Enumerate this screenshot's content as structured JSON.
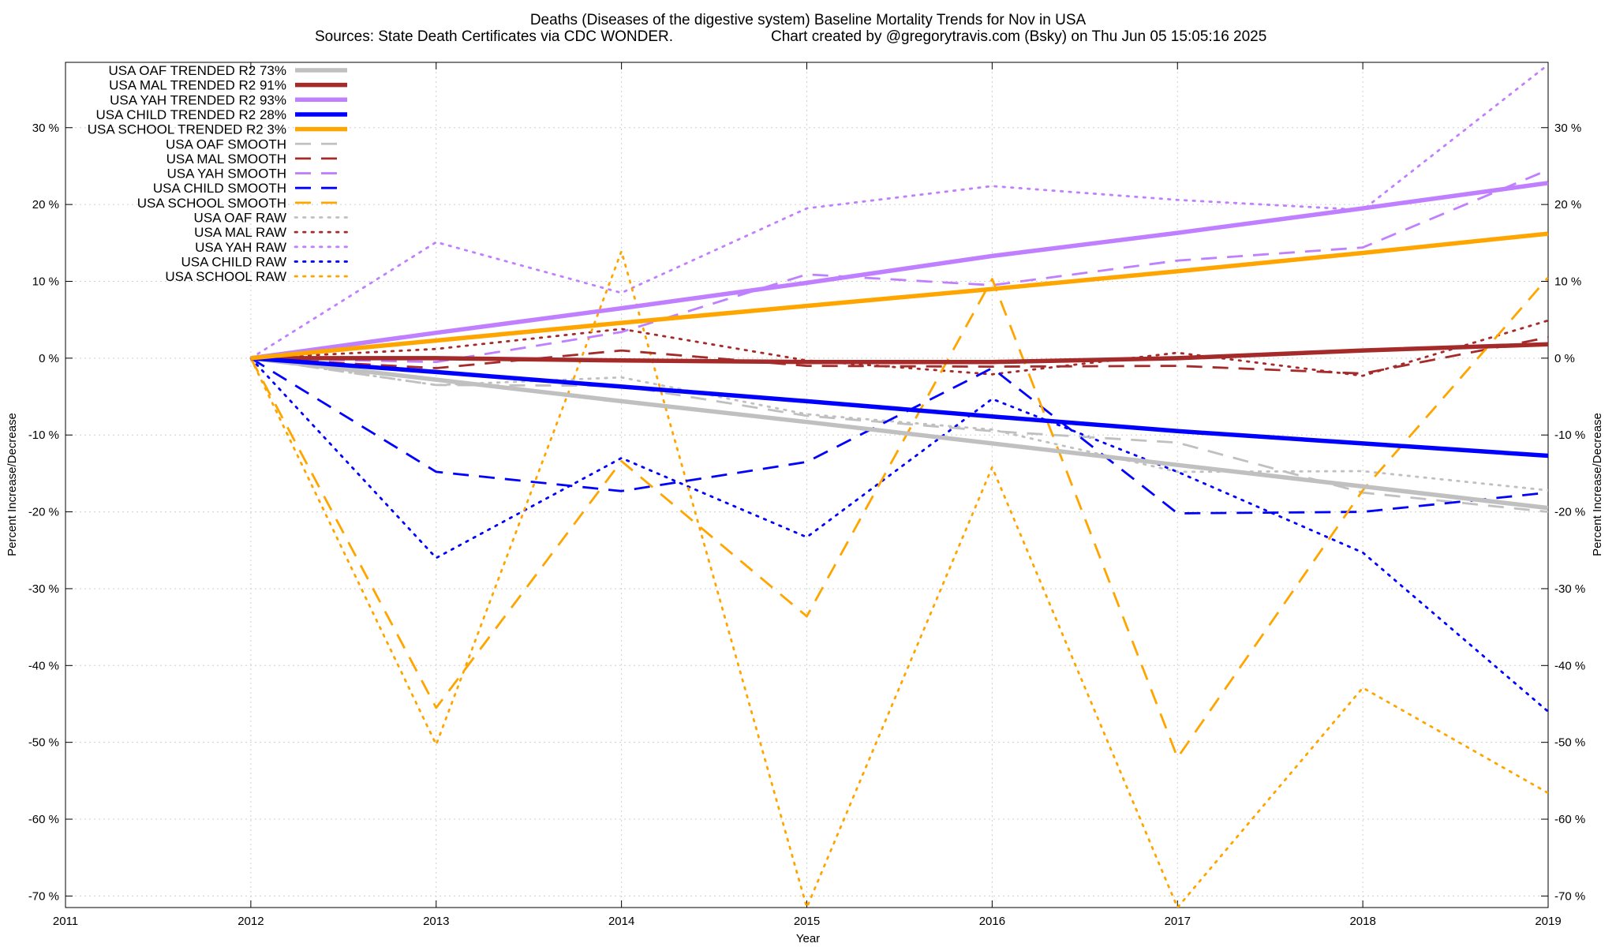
{
  "chart_data": {
    "type": "line",
    "title": "Deaths (Diseases of the digestive system)  Baseline Mortality Trends for Nov in USA",
    "subtitle_left": "Sources: State Death Certificates via CDC WONDER.",
    "subtitle_right": "Chart created by @gregorytravis.com (Bsky) on Thu Jun 05 15:05:16 2025",
    "xlabel": "Year",
    "ylabel_left": "Percent Increase/Decrease",
    "ylabel_right": "Percent Increase/Decrease",
    "xlim": [
      2011,
      2019
    ],
    "ylim": [
      -71.5,
      38.5
    ],
    "x_ticks": [
      "2011",
      "2012",
      "2013",
      "2014",
      "2015",
      "2016",
      "2017",
      "2018",
      "2019"
    ],
    "y_ticks": [
      "30 %",
      "20 %",
      "10 %",
      "0 %",
      "-10 %",
      "-20 %",
      "-30 %",
      "-40 %",
      "-50 %",
      "-60 %",
      "-70 %"
    ],
    "y_tick_values": [
      30,
      20,
      10,
      0,
      -10,
      -20,
      -30,
      -40,
      -50,
      -60,
      -70
    ],
    "grid": true,
    "legend_position": "top-left",
    "x": [
      2012,
      2013,
      2014,
      2015,
      2016,
      2017,
      2018,
      2019
    ],
    "series": [
      {
        "name": "USA OAF TRENDED R2  73%",
        "color": "#c0c0c0",
        "style": "solid",
        "values": [
          0,
          -2.8,
          -5.6,
          -8.3,
          -11.1,
          -13.9,
          -16.7,
          -19.5
        ]
      },
      {
        "name": "USA MAL TRENDED R2  91%",
        "color": "#a52a2a",
        "style": "solid",
        "values": [
          0,
          0,
          -0.3,
          -0.5,
          -0.5,
          0,
          1,
          1.8
        ]
      },
      {
        "name": "USA YAH TRENDED R2  93%",
        "color": "#bf7fff",
        "style": "solid",
        "values": [
          0,
          3.3,
          6.5,
          9.8,
          13.3,
          16.3,
          19.5,
          22.8
        ]
      },
      {
        "name": "USA CHILD TRENDED R2  28%",
        "color": "#0000ff",
        "style": "solid",
        "values": [
          0,
          -1.8,
          -3.7,
          -5.6,
          -7.6,
          -9.5,
          -11.1,
          -12.7
        ]
      },
      {
        "name": "USA SCHOOL TRENDED R2   3%",
        "color": "#ffa500",
        "style": "solid",
        "values": [
          0,
          2.3,
          4.6,
          6.8,
          9,
          11.3,
          13.7,
          16.2
        ]
      },
      {
        "name": "USA OAF SMOOTH",
        "color": "#c0c0c0",
        "style": "dashed",
        "values": [
          0,
          -3.5,
          -3.6,
          -7.5,
          -9.5,
          -11,
          -17.5,
          -20
        ]
      },
      {
        "name": "USA MAL SMOOTH",
        "color": "#a52a2a",
        "style": "dashed",
        "values": [
          0,
          -1.3,
          1,
          -1,
          -1.1,
          -1,
          -2,
          2.7
        ]
      },
      {
        "name": "USA YAH SMOOTH",
        "color": "#bf7fff",
        "style": "dashed",
        "values": [
          0,
          -0.5,
          3.4,
          10.9,
          9.5,
          12.7,
          14.4,
          24.5
        ]
      },
      {
        "name": "USA CHILD SMOOTH",
        "color": "#0000ff",
        "style": "dashed",
        "values": [
          0,
          -14.8,
          -17.3,
          -13.5,
          -1.3,
          -20.2,
          -20,
          -17.5
        ]
      },
      {
        "name": "USA SCHOOL SMOOTH",
        "color": "#ffa500",
        "style": "dashed",
        "values": [
          0,
          -45.5,
          -13.4,
          -33.6,
          10.3,
          -52,
          -17.2,
          10.5
        ]
      },
      {
        "name": "USA OAF RAW",
        "color": "#c0c0c0",
        "style": "dotted",
        "values": [
          0,
          -3.5,
          -2.5,
          -7.3,
          -9.3,
          -14.8,
          -14.7,
          -17.2
        ]
      },
      {
        "name": "USA MAL RAW",
        "color": "#a52a2a",
        "style": "dotted",
        "values": [
          0,
          1.2,
          3.8,
          -0.3,
          -2.1,
          0.7,
          -2.3,
          4.9
        ]
      },
      {
        "name": "USA YAH RAW",
        "color": "#bf7fff",
        "style": "dotted",
        "values": [
          0,
          15.1,
          8.5,
          19.5,
          22.4,
          20.6,
          19.3,
          38.2
        ]
      },
      {
        "name": "USA CHILD RAW",
        "color": "#0000ff",
        "style": "dotted",
        "values": [
          0,
          -26,
          -13,
          -23.3,
          -5.3,
          -14.8,
          -25.3,
          -46
        ]
      },
      {
        "name": "USA SCHOOL RAW",
        "color": "#ffa500",
        "style": "dotted",
        "values": [
          0,
          -50.3,
          13.9,
          -71.5,
          -14.2,
          -71.5,
          -42.9,
          -56.6
        ]
      }
    ]
  }
}
